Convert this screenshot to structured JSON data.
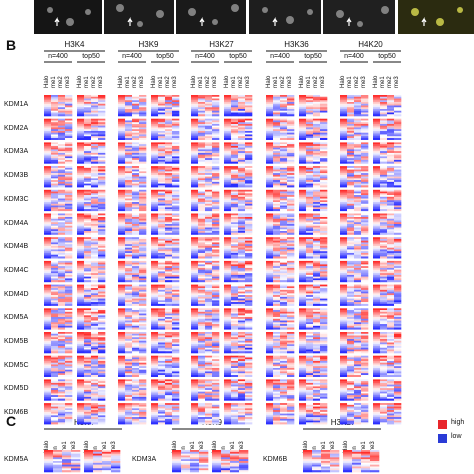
{
  "panelB": {
    "label": "B",
    "modifications": [
      "H3K4",
      "H3K9",
      "H3K27",
      "H3K36",
      "H4K20"
    ],
    "subsets": [
      "n=400",
      "top50"
    ],
    "columns": [
      "Halo",
      "me1",
      "me2",
      "me3"
    ],
    "rows": [
      "KDM1A",
      "KDM2A",
      "KDM3A",
      "KDM3B",
      "KDM3C",
      "KDM4A",
      "KDM4B",
      "KDM4C",
      "KDM4D",
      "KDM5A",
      "KDM5B",
      "KDM5C",
      "KDM5D",
      "KDM6B"
    ]
  },
  "panelC": {
    "label": "C",
    "groups": [
      {
        "mod": "H3K4",
        "row": "KDM5A",
        "columns": [
          "Halo",
          "un",
          "me1",
          "me3"
        ]
      },
      {
        "mod": "H3K9",
        "row": "KDM3A",
        "columns": [
          "Halo",
          "un",
          "me1",
          "me3"
        ]
      },
      {
        "mod": "H3K27",
        "row": "KDM6B",
        "columns": [
          "Halo",
          "un",
          "me1",
          "me3"
        ]
      }
    ]
  },
  "legend": {
    "high": "high",
    "low": "low",
    "high_color": "#e8262b",
    "low_color": "#2a3bd6"
  }
}
